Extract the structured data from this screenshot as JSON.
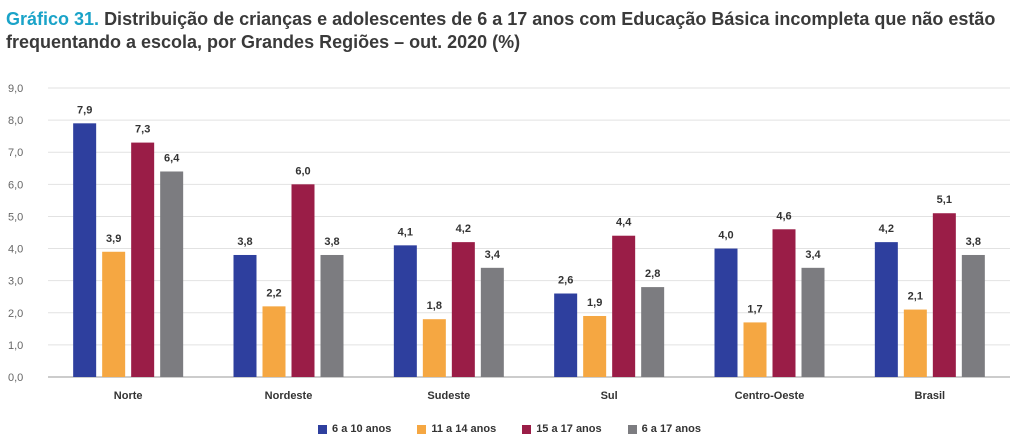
{
  "title": {
    "lead": "Gráfico 31.",
    "text": "Distribuição de crianças e adolescentes de 6 a 17 anos com Educação Básica incompleta que não estão frequentando a escola, por Grandes Regiões – out. 2020 (%)"
  },
  "chart_data": {
    "type": "bar",
    "categories": [
      "Norte",
      "Nordeste",
      "Sudeste",
      "Sul",
      "Centro-Oeste",
      "Brasil"
    ],
    "series": [
      {
        "name": "6 a 10 anos",
        "color": "#2e3f9e",
        "values": [
          7.9,
          3.8,
          4.1,
          2.6,
          4.0,
          4.2
        ],
        "labels": [
          "7,9",
          "3,8",
          "4,1",
          "2,6",
          "4,0",
          "4,2"
        ]
      },
      {
        "name": "11 a 14 anos",
        "color": "#f5a742",
        "values": [
          3.9,
          2.2,
          1.8,
          1.9,
          1.7,
          2.1
        ],
        "labels": [
          "3,9",
          "2,2",
          "1,8",
          "1,9",
          "1,7",
          "2,1"
        ]
      },
      {
        "name": "15 a 17 anos",
        "color": "#9a1d47",
        "values": [
          7.3,
          6.0,
          4.2,
          4.4,
          4.6,
          5.1
        ],
        "labels": [
          "7,3",
          "6,0",
          "4,2",
          "4,4",
          "4,6",
          "5,1"
        ]
      },
      {
        "name": "6 a 17 anos",
        "color": "#7c7c80",
        "values": [
          6.4,
          3.8,
          3.4,
          2.8,
          3.4,
          3.8
        ],
        "labels": [
          "6,4",
          "3,8",
          "3,4",
          "2,8",
          "3,4",
          "3,8"
        ]
      }
    ],
    "y_ticks": [
      "0,0",
      "1,0",
      "2,0",
      "3,0",
      "4,0",
      "5,0",
      "6,0",
      "7,0",
      "8,0",
      "9,0"
    ],
    "ylim": [
      0,
      9
    ],
    "grid": true,
    "legend_position": "bottom-center"
  }
}
